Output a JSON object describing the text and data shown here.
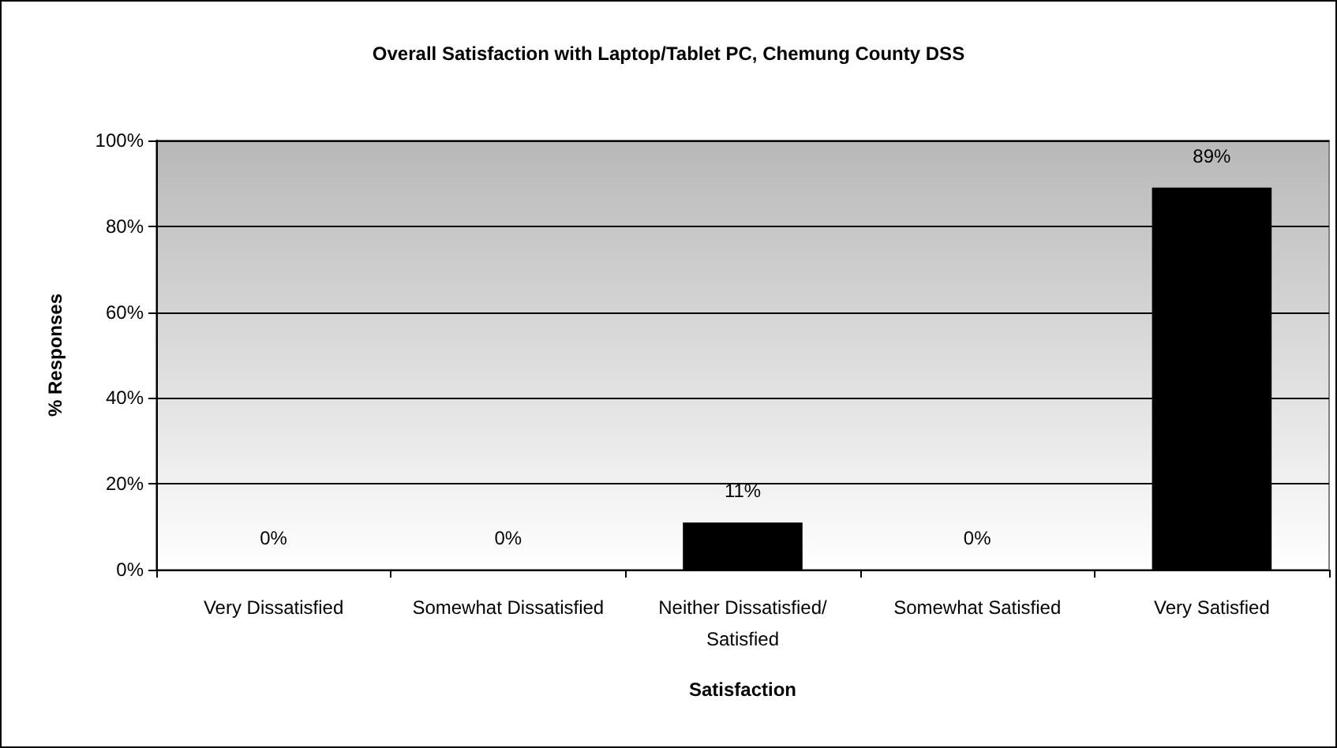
{
  "chart_data": {
    "type": "bar",
    "title": "Overall Satisfaction with Laptop/Tablet PC, Chemung County DSS",
    "xlabel": "Satisfaction",
    "ylabel": "% Responses",
    "categories": [
      "Very Dissatisfied",
      "Somewhat Dissatisfied",
      "Neither Dissatisfied/Satisfied",
      "Somewhat Satisfied",
      "Very Satisfied"
    ],
    "values": [
      0,
      0,
      11,
      0,
      89
    ],
    "value_labels": [
      "0%",
      "0%",
      "11%",
      "0%",
      "89%"
    ],
    "color": "#000000",
    "ylim": [
      0,
      100
    ],
    "yticks": [
      {
        "value": 0,
        "label": "0%"
      },
      {
        "value": 20,
        "label": "20%"
      },
      {
        "value": 40,
        "label": "40%"
      },
      {
        "value": 60,
        "label": "60%"
      },
      {
        "value": 80,
        "label": "80%"
      },
      {
        "value": 100,
        "label": "100%"
      }
    ],
    "grid": "y"
  }
}
